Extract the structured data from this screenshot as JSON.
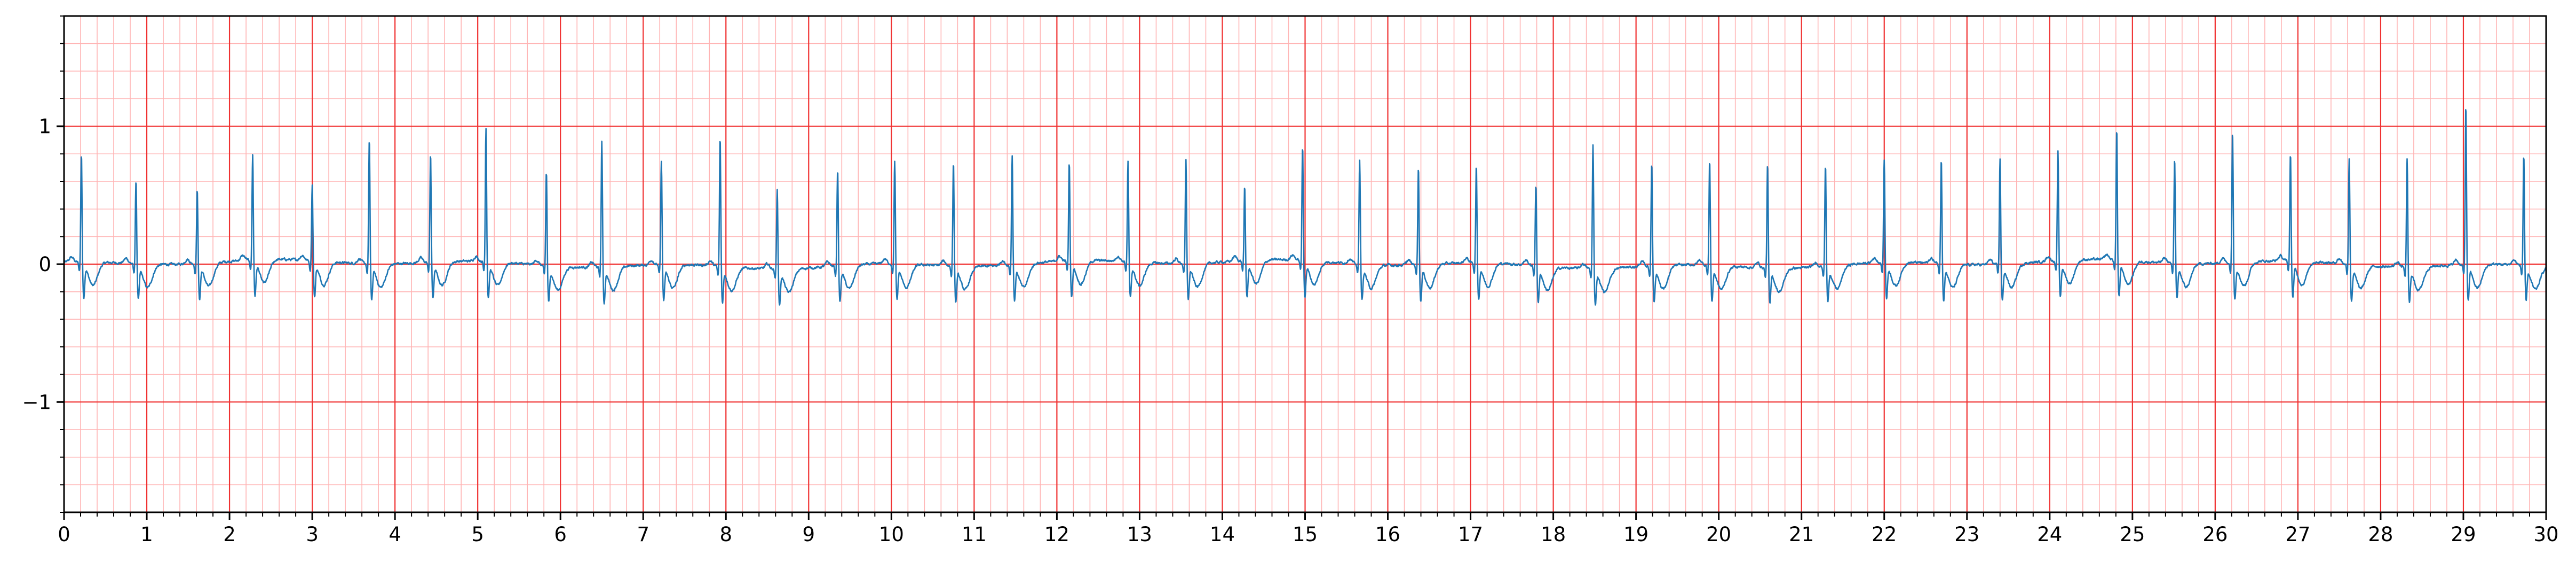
{
  "chart_data": {
    "type": "line",
    "title": "",
    "xlabel": "",
    "ylabel": "",
    "xlim": [
      0,
      30
    ],
    "ylim": [
      -1.8,
      1.8
    ],
    "grid": "on",
    "grid_style": "ECG paper: major every 1 s / 1 unit, minor every 0.2 s / 0.2 unit",
    "x_ticks": [
      0,
      1,
      2,
      3,
      4,
      5,
      6,
      7,
      8,
      9,
      10,
      11,
      12,
      13,
      14,
      15,
      16,
      17,
      18,
      19,
      20,
      21,
      22,
      23,
      24,
      25,
      26,
      27,
      28,
      29,
      30
    ],
    "x_tick_labels": [
      "0",
      "1",
      "2",
      "3",
      "4",
      "5",
      "6",
      "7",
      "8",
      "9",
      "10",
      "11",
      "12",
      "13",
      "14",
      "15",
      "16",
      "17",
      "18",
      "19",
      "20",
      "21",
      "22",
      "23",
      "24",
      "25",
      "26",
      "27",
      "28",
      "29",
      "30"
    ],
    "y_ticks": [
      -1,
      0,
      1
    ],
    "y_tick_labels": [
      "−1",
      "0",
      "1"
    ],
    "colors": {
      "trace": "#1f77b4",
      "major_grid": "#f03232",
      "minor_grid": "#ffb4b4",
      "axes": "#000000"
    },
    "beat_times": [
      0.21,
      0.87,
      1.61,
      2.28,
      3.0,
      3.69,
      4.43,
      5.1,
      5.83,
      6.5,
      7.22,
      7.93,
      8.62,
      9.35,
      10.04,
      10.75,
      11.46,
      12.15,
      12.86,
      13.56,
      14.27,
      14.97,
      15.66,
      16.37,
      17.07,
      17.79,
      18.48,
      19.19,
      19.89,
      20.59,
      21.29,
      22.0,
      22.69,
      23.4,
      24.1,
      24.81,
      25.51,
      26.21,
      26.91,
      27.62,
      28.32,
      29.03,
      29.73
    ],
    "beat_amplitudes": [
      0.8,
      0.62,
      0.56,
      0.78,
      0.57,
      0.92,
      0.8,
      0.99,
      0.7,
      0.93,
      0.77,
      0.95,
      0.59,
      0.72,
      0.76,
      0.77,
      0.81,
      0.73,
      0.74,
      0.76,
      0.55,
      0.84,
      0.78,
      0.73,
      0.72,
      0.6,
      0.91,
      0.76,
      0.78,
      0.77,
      0.75,
      0.76,
      0.78,
      0.78,
      0.81,
      0.97,
      0.78,
      0.97,
      0.79,
      0.79,
      0.79,
      1.17,
      0.82
    ],
    "baseline": 0.0,
    "sample_interval_s": 0.004
  }
}
